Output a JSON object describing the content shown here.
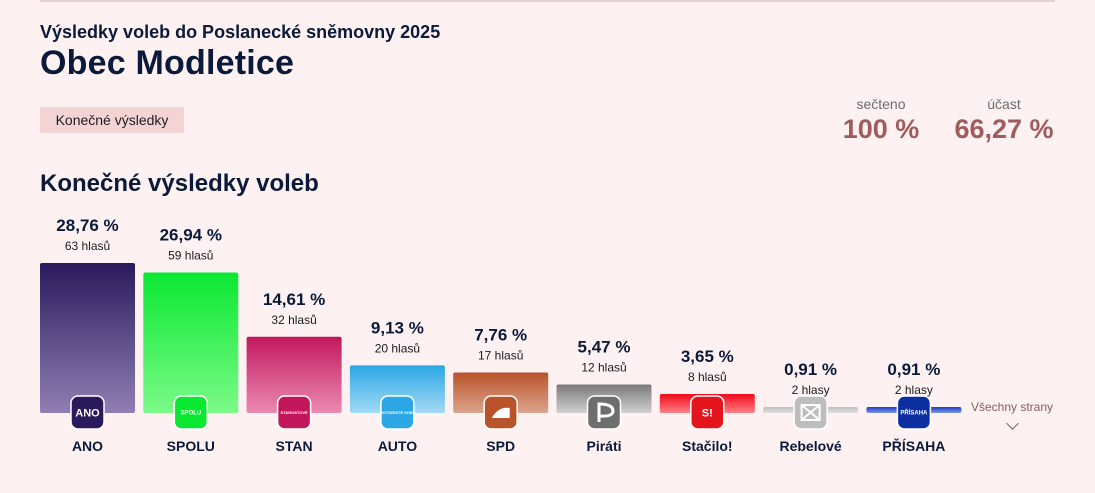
{
  "header": {
    "subtitle": "Výsledky voleb do Poslanecké sněmovny 2025",
    "title": "Obec Modletice",
    "status_badge": "Konečné výsledky"
  },
  "stats": {
    "counted_label": "sečteno",
    "counted_value": "100 %",
    "turnout_label": "účast",
    "turnout_value": "66,27 %"
  },
  "section_title": "Konečné výsledky voleb",
  "all_parties_label": "Všechny strany",
  "chart_data": {
    "type": "bar",
    "title": "Konečné výsledky voleb",
    "ylim": [
      0,
      28.76
    ],
    "categories": [
      "ANO",
      "SPOLU",
      "STAN",
      "AUTO",
      "SPD",
      "Piráti",
      "Stačilo!",
      "Rebelové",
      "PŘÍSAHA"
    ],
    "values": [
      28.76,
      26.94,
      14.61,
      9.13,
      7.76,
      5.47,
      3.65,
      0.91,
      0.91
    ],
    "value_labels": [
      "28,76 %",
      "26,94 %",
      "14,61 %",
      "9,13 %",
      "7,76 %",
      "5,47 %",
      "3,65 %",
      "0,91 %",
      "0,91 %"
    ],
    "vote_labels": [
      "63 hlasů",
      "59 hlasů",
      "32 hlasů",
      "20 hlasů",
      "17 hlasů",
      "12 hlasů",
      "8 hlasů",
      "2 hlasy",
      "2 hlasy"
    ],
    "logo_texts": [
      "ANO",
      "SPOLU",
      "STAROSTOVÉ",
      "MOTORISTÉ SOBĚ",
      "",
      "",
      "S!",
      "",
      "PŘÍSAHA"
    ],
    "colors_top": [
      "#2a1a5c",
      "#0be832",
      "#c2185b",
      "#2aa7e4",
      "#b8532a",
      "#7a7a7a",
      "#f00a1a",
      "#c0c0c0",
      "#1b3fc4"
    ],
    "colors_bottom": [
      "#8f7fb3",
      "#7bfa88",
      "#ea8ab1",
      "#a4daf6",
      "#dca58d",
      "#d1d1d1",
      "#ff7f86",
      "#dedede",
      "#7e95e4"
    ],
    "logo_bg": [
      "#2a1a5c",
      "#0be832",
      "#c2185b",
      "#2aa7e4",
      "#b8532a",
      "#6e6e6e",
      "#e3141c",
      "#bdbdbd",
      "#0b2ea0"
    ]
  }
}
